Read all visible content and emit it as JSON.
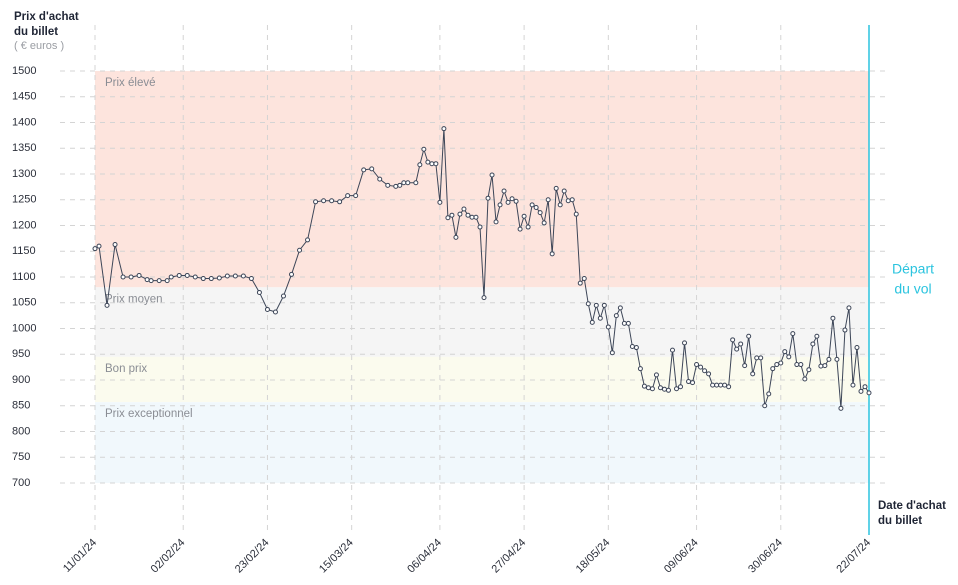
{
  "chart_data": {
    "type": "line",
    "y_title": [
      "Prix d'achat",
      "du billet"
    ],
    "y_unit": "( € euros )",
    "x_title": [
      "Date d'achat",
      "du billet"
    ],
    "ylim": [
      700,
      1500
    ],
    "yticks": [
      700,
      750,
      800,
      850,
      900,
      950,
      1000,
      1050,
      1100,
      1150,
      1200,
      1250,
      1300,
      1350,
      1400,
      1450,
      1500
    ],
    "xlim": [
      "2024-01-11",
      "2024-07-22"
    ],
    "xticks": [
      {
        "value": "2024-01-11",
        "label": "11/01/24"
      },
      {
        "value": "2024-02-02",
        "label": "02/02/24"
      },
      {
        "value": "2024-02-23",
        "label": "23/02/24"
      },
      {
        "value": "2024-03-15",
        "label": "15/03/24"
      },
      {
        "value": "2024-04-06",
        "label": "06/04/24"
      },
      {
        "value": "2024-04-27",
        "label": "27/04/24"
      },
      {
        "value": "2024-05-18",
        "label": "18/05/24"
      },
      {
        "value": "2024-06-09",
        "label": "09/06/24"
      },
      {
        "value": "2024-06-30",
        "label": "30/06/24"
      },
      {
        "value": "2024-07-22",
        "label": "22/07/24"
      }
    ],
    "grid": true,
    "bands": [
      {
        "label": "Prix élevé",
        "from": 1080,
        "to": 1500,
        "color": "#fde4dd"
      },
      {
        "label": "Prix moyen",
        "from": 945,
        "to": 1080,
        "color": "#f5f5f5"
      },
      {
        "label": "Bon prix",
        "from": 857,
        "to": 945,
        "color": "#fbfbee"
      },
      {
        "label": "Prix exceptionnel",
        "from": 700,
        "to": 857,
        "color": "#f1f8fc"
      }
    ],
    "departure": {
      "date": "2024-07-22",
      "label": [
        "Départ",
        "du vol"
      ],
      "color": "#2bc4df"
    },
    "series": [
      {
        "color": "#3d4658",
        "x": [
          "2024-01-11",
          "2024-01-12",
          "2024-01-14",
          "2024-01-16",
          "2024-01-18",
          "2024-01-20",
          "2024-01-22",
          "2024-01-24",
          "2024-01-25",
          "2024-01-27",
          "2024-01-29",
          "2024-01-30",
          "2024-02-01",
          "2024-02-03",
          "2024-02-05",
          "2024-02-07",
          "2024-02-09",
          "2024-02-11",
          "2024-02-13",
          "2024-02-15",
          "2024-02-17",
          "2024-02-19",
          "2024-02-21",
          "2024-02-23",
          "2024-02-25",
          "2024-02-27",
          "2024-02-29",
          "2024-03-02",
          "2024-03-04",
          "2024-03-06",
          "2024-03-08",
          "2024-03-10",
          "2024-03-12",
          "2024-03-14",
          "2024-03-16",
          "2024-03-18",
          "2024-03-20",
          "2024-03-22",
          "2024-03-24",
          "2024-03-26",
          "2024-03-27",
          "2024-03-28",
          "2024-03-29",
          "2024-03-31",
          "2024-04-01",
          "2024-04-02",
          "2024-04-03",
          "2024-04-04",
          "2024-04-05",
          "2024-04-06",
          "2024-04-07",
          "2024-04-08",
          "2024-04-09",
          "2024-04-10",
          "2024-04-11",
          "2024-04-12",
          "2024-04-13",
          "2024-04-14",
          "2024-04-15",
          "2024-04-16",
          "2024-04-17",
          "2024-04-18",
          "2024-04-19",
          "2024-04-20",
          "2024-04-21",
          "2024-04-22",
          "2024-04-23",
          "2024-04-24",
          "2024-04-25",
          "2024-04-26",
          "2024-04-27",
          "2024-04-28",
          "2024-04-29",
          "2024-04-30",
          "2024-05-01",
          "2024-05-02",
          "2024-05-03",
          "2024-05-04",
          "2024-05-05",
          "2024-05-06",
          "2024-05-07",
          "2024-05-08",
          "2024-05-09",
          "2024-05-10",
          "2024-05-11",
          "2024-05-12",
          "2024-05-13",
          "2024-05-14",
          "2024-05-15",
          "2024-05-16",
          "2024-05-17",
          "2024-05-18",
          "2024-05-19",
          "2024-05-20",
          "2024-05-21",
          "2024-05-22",
          "2024-05-23",
          "2024-05-24",
          "2024-05-25",
          "2024-05-26",
          "2024-05-27",
          "2024-05-28",
          "2024-05-29",
          "2024-05-30",
          "2024-05-31",
          "2024-06-01",
          "2024-06-02",
          "2024-06-03",
          "2024-06-04",
          "2024-06-05",
          "2024-06-06",
          "2024-06-07",
          "2024-06-08",
          "2024-06-09",
          "2024-06-10",
          "2024-06-11",
          "2024-06-12",
          "2024-06-13",
          "2024-06-14",
          "2024-06-15",
          "2024-06-16",
          "2024-06-17",
          "2024-06-18",
          "2024-06-19",
          "2024-06-20",
          "2024-06-21",
          "2024-06-22",
          "2024-06-23",
          "2024-06-24",
          "2024-06-25",
          "2024-06-26",
          "2024-06-27",
          "2024-06-28",
          "2024-06-29",
          "2024-06-30",
          "2024-07-01",
          "2024-07-02",
          "2024-07-03",
          "2024-07-04",
          "2024-07-05",
          "2024-07-06",
          "2024-07-07",
          "2024-07-08",
          "2024-07-09",
          "2024-07-10",
          "2024-07-11",
          "2024-07-12",
          "2024-07-13",
          "2024-07-14",
          "2024-07-15",
          "2024-07-16",
          "2024-07-17",
          "2024-07-18",
          "2024-07-19",
          "2024-07-20",
          "2024-07-21",
          "2024-07-22"
        ],
        "values": [
          1155,
          1160,
          1045,
          1163,
          1100,
          1100,
          1103,
          1095,
          1093,
          1093,
          1093,
          1100,
          1103,
          1103,
          1100,
          1097,
          1097,
          1098,
          1102,
          1102,
          1102,
          1097,
          1070,
          1037,
          1032,
          1063,
          1105,
          1152,
          1172,
          1246,
          1248,
          1248,
          1246,
          1258,
          1258,
          1308,
          1310,
          1290,
          1278,
          1276,
          1278,
          1283,
          1283,
          1283,
          1318,
          1348,
          1323,
          1320,
          1320,
          1245,
          1388,
          1215,
          1220,
          1177,
          1222,
          1232,
          1220,
          1216,
          1216,
          1197,
          1060,
          1253,
          1298,
          1207,
          1240,
          1267,
          1245,
          1252,
          1247,
          1193,
          1218,
          1197,
          1240,
          1235,
          1225,
          1205,
          1250,
          1145,
          1272,
          1240,
          1267,
          1248,
          1250,
          1222,
          1088,
          1097,
          1048,
          1012,
          1045,
          1020,
          1045,
          1003,
          953,
          1025,
          1040,
          1010,
          1010,
          965,
          963,
          922,
          888,
          885,
          883,
          910,
          885,
          882,
          880,
          958,
          883,
          887,
          972,
          897,
          895,
          930,
          925,
          918,
          912,
          890,
          890,
          890,
          890,
          887,
          978,
          960,
          970,
          928,
          985,
          912,
          943,
          943,
          850,
          873,
          922,
          930,
          933,
          955,
          945,
          990,
          930,
          930,
          902,
          920,
          970,
          985,
          927,
          928,
          940,
          1020,
          940,
          845,
          997,
          1040,
          890,
          963,
          878,
          887,
          875
        ]
      }
    ]
  }
}
